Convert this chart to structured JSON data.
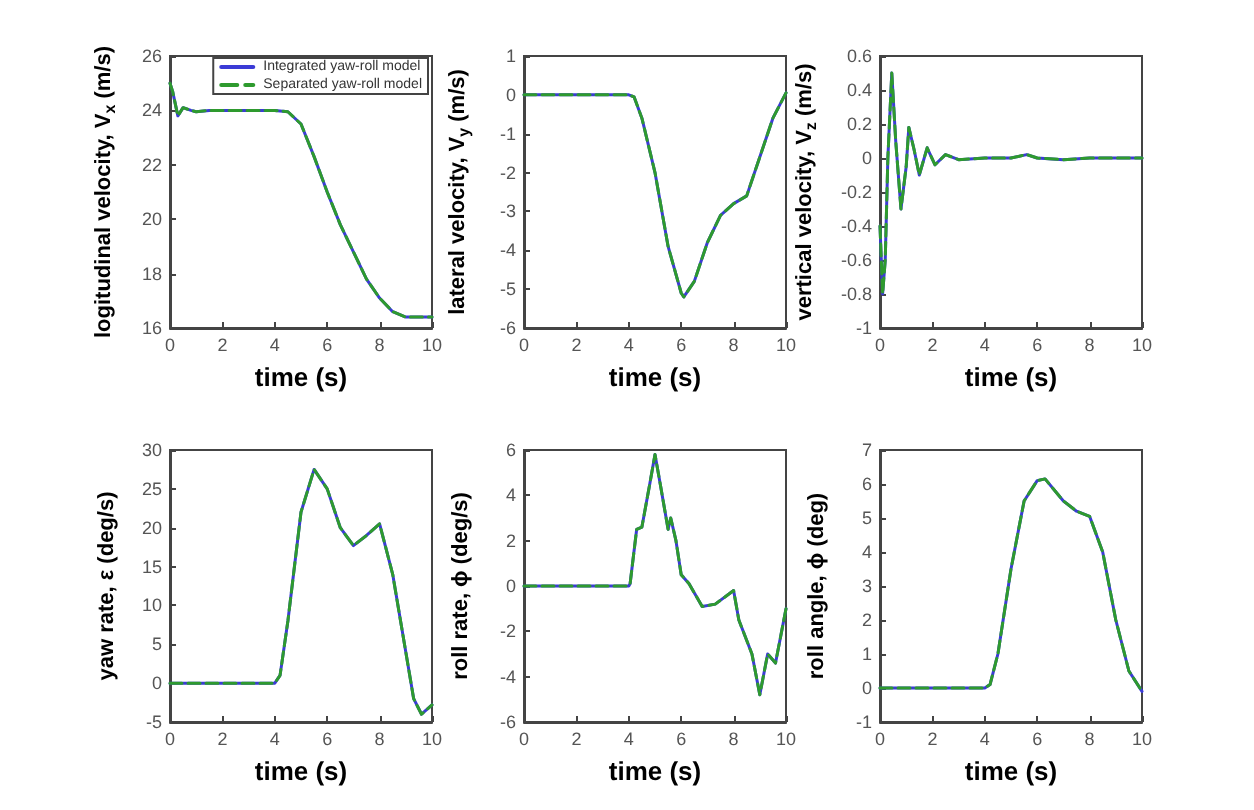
{
  "chart_data": [
    {
      "type": "line",
      "ylabel": "logitudinal velocity, V$_{x}$ (m/s)",
      "xlabel": "time (s)",
      "xlim": [
        0,
        10
      ],
      "xticks": [
        0,
        2,
        4,
        6,
        8,
        10
      ],
      "ylim": [
        16,
        26
      ],
      "yticks": [
        16,
        18,
        20,
        22,
        24,
        26
      ],
      "grid": false,
      "legend": "top right",
      "marker": "none",
      "series": [
        {
          "name": "Integrated yaw-roll model",
          "color": "#3b3bd6",
          "line_style": "solid",
          "x": [
            0,
            0.1,
            0.3,
            0.5,
            0.8,
            1,
            1.5,
            2,
            4,
            4.5,
            5,
            5.5,
            6,
            6.5,
            7,
            7.5,
            8,
            8.5,
            9,
            10
          ],
          "values": [
            25,
            24.7,
            23.8,
            24.1,
            24.0,
            23.95,
            24,
            24,
            24,
            23.95,
            23.5,
            22.3,
            21,
            19.8,
            18.8,
            17.8,
            17.1,
            16.6,
            16.4,
            16.4
          ]
        },
        {
          "name": "Separated yaw-roll model",
          "color": "#2e9a2e",
          "line_style": "dashed",
          "x": [
            0,
            0.1,
            0.3,
            0.5,
            0.8,
            1,
            1.5,
            2,
            4,
            4.5,
            5,
            5.5,
            6,
            6.5,
            7,
            7.5,
            8,
            8.5,
            9,
            10
          ],
          "values": [
            25,
            24.7,
            23.8,
            24.1,
            24.0,
            23.95,
            24,
            24,
            24,
            23.95,
            23.5,
            22.3,
            21,
            19.8,
            18.8,
            17.8,
            17.1,
            16.6,
            16.4,
            16.4
          ]
        }
      ]
    },
    {
      "type": "line",
      "ylabel": "lateral velocity, V$_{y}$ (m/s)",
      "xlabel": "time (s)",
      "xlim": [
        0,
        10
      ],
      "xticks": [
        0,
        2,
        4,
        6,
        8,
        10
      ],
      "ylim": [
        -6,
        1
      ],
      "yticks": [
        -6,
        -5,
        -4,
        -3,
        -2,
        -1,
        0,
        1
      ],
      "grid": false,
      "legend": false,
      "marker": "none",
      "series": [
        {
          "color": "#3b3bd6",
          "line_style": "solid",
          "x": [
            0,
            4,
            4.2,
            4.5,
            5,
            5.5,
            6,
            6.1,
            6.5,
            7,
            7.5,
            8,
            8.5,
            9,
            9.5,
            10
          ],
          "values": [
            0,
            0,
            -0.05,
            -0.6,
            -2,
            -3.9,
            -5.1,
            -5.2,
            -4.8,
            -3.8,
            -3.1,
            -2.8,
            -2.6,
            -1.6,
            -0.6,
            0.05
          ]
        },
        {
          "color": "#2e9a2e",
          "line_style": "dashed",
          "x": [
            0,
            4,
            4.2,
            4.5,
            5,
            5.5,
            6,
            6.1,
            6.5,
            7,
            7.5,
            8,
            8.5,
            9,
            9.5,
            10
          ],
          "values": [
            0,
            0,
            -0.05,
            -0.6,
            -2,
            -3.9,
            -5.1,
            -5.2,
            -4.8,
            -3.8,
            -3.1,
            -2.8,
            -2.6,
            -1.6,
            -0.6,
            0.05
          ]
        }
      ]
    },
    {
      "type": "line",
      "ylabel": "vertical velocity, V$_{z}$ (m/s)",
      "xlabel": "time (s)",
      "xlim": [
        0,
        10
      ],
      "xticks": [
        0,
        2,
        4,
        6,
        8,
        10
      ],
      "ylim": [
        -1,
        0.6
      ],
      "yticks": [
        -1,
        -0.8,
        -0.6,
        -0.4,
        -0.2,
        0,
        0.2,
        0.4,
        0.6
      ],
      "grid": false,
      "legend": false,
      "marker": "none",
      "series": [
        {
          "color": "#3b3bd6",
          "line_style": "solid",
          "x": [
            0,
            0.1,
            0.2,
            0.3,
            0.45,
            0.6,
            0.8,
            1,
            1.1,
            1.3,
            1.5,
            1.8,
            2.1,
            2.5,
            3,
            4,
            5,
            5.6,
            6,
            7,
            8,
            10
          ],
          "values": [
            -0.4,
            -0.8,
            -0.6,
            0,
            0.5,
            0.1,
            -0.3,
            -0.05,
            0.18,
            0.05,
            -0.1,
            0.06,
            -0.04,
            0.02,
            -0.01,
            0,
            0,
            0.02,
            0,
            -0.01,
            0,
            0
          ]
        },
        {
          "color": "#2e9a2e",
          "line_style": "dashed",
          "x": [
            0,
            0.1,
            0.2,
            0.3,
            0.45,
            0.6,
            0.8,
            1,
            1.1,
            1.3,
            1.5,
            1.8,
            2.1,
            2.5,
            3,
            4,
            5,
            5.6,
            6,
            7,
            8,
            10
          ],
          "values": [
            -0.4,
            -0.8,
            -0.6,
            0,
            0.5,
            0.1,
            -0.3,
            -0.05,
            0.18,
            0.05,
            -0.1,
            0.06,
            -0.04,
            0.02,
            -0.01,
            0,
            0,
            0.02,
            0,
            -0.01,
            0,
            0
          ]
        }
      ]
    },
    {
      "type": "line",
      "ylabel": "yaw rate, ε (deg/s)",
      "xlabel": "time (s)",
      "xlim": [
        0,
        10
      ],
      "xticks": [
        0,
        2,
        4,
        6,
        8,
        10
      ],
      "ylim": [
        -5,
        30
      ],
      "yticks": [
        -5,
        0,
        5,
        10,
        15,
        20,
        25,
        30
      ],
      "grid": false,
      "legend": false,
      "marker": "none",
      "series": [
        {
          "color": "#3b3bd6",
          "line_style": "solid",
          "x": [
            0,
            4,
            4.2,
            4.5,
            5,
            5.5,
            6,
            6.5,
            7,
            7.5,
            8,
            8.5,
            9,
            9.3,
            9.6,
            10
          ],
          "values": [
            0,
            0,
            1,
            8,
            22,
            27.5,
            25,
            20,
            17.7,
            19,
            20.5,
            14,
            4,
            -2,
            -4,
            -2.8
          ]
        },
        {
          "color": "#2e9a2e",
          "line_style": "dashed",
          "x": [
            0,
            4,
            4.2,
            4.5,
            5,
            5.5,
            6,
            6.5,
            7,
            7.5,
            8,
            8.5,
            9,
            9.3,
            9.6,
            10
          ],
          "values": [
            0,
            0,
            1,
            8,
            22,
            27.5,
            25,
            20,
            17.7,
            19,
            20.5,
            14,
            4,
            -2,
            -4,
            -2.8
          ]
        }
      ]
    },
    {
      "type": "line",
      "ylabel": "roll rate, ϕ (deg/s)",
      "xlabel": "time (s)",
      "xlim": [
        0,
        10
      ],
      "xticks": [
        0,
        2,
        4,
        6,
        8,
        10
      ],
      "ylim": [
        -6,
        6
      ],
      "yticks": [
        -6,
        -4,
        -2,
        0,
        2,
        4,
        6
      ],
      "grid": false,
      "legend": false,
      "marker": "none",
      "series": [
        {
          "color": "#3b3bd6",
          "line_style": "solid",
          "x": [
            0,
            4,
            4.05,
            4.3,
            4.5,
            4.8,
            5,
            5.2,
            5.5,
            5.6,
            5.8,
            6,
            6.3,
            6.8,
            7.3,
            8,
            8.2,
            8.7,
            9,
            9.3,
            9.6,
            10
          ],
          "values": [
            0,
            0,
            0.1,
            2.5,
            2.6,
            4.5,
            5.8,
            4.5,
            2.5,
            3,
            2,
            0.5,
            0.1,
            -0.9,
            -0.8,
            -0.2,
            -1.5,
            -3,
            -4.8,
            -3,
            -3.4,
            -1
          ]
        },
        {
          "color": "#2e9a2e",
          "line_style": "dashed",
          "x": [
            0,
            4,
            4.05,
            4.3,
            4.5,
            4.8,
            5,
            5.2,
            5.5,
            5.6,
            5.8,
            6,
            6.3,
            6.8,
            7.3,
            8,
            8.2,
            8.7,
            9,
            9.3,
            9.6,
            10
          ],
          "values": [
            0,
            0,
            0.1,
            2.5,
            2.6,
            4.5,
            5.8,
            4.5,
            2.5,
            3,
            2,
            0.5,
            0.1,
            -0.9,
            -0.8,
            -0.2,
            -1.5,
            -3,
            -4.8,
            -3,
            -3.4,
            -1
          ]
        }
      ]
    },
    {
      "type": "line",
      "ylabel": "roll angle, ϕ (deg)",
      "xlabel": "time (s)",
      "xlim": [
        0,
        10
      ],
      "xticks": [
        0,
        2,
        4,
        6,
        8,
        10
      ],
      "ylim": [
        -1,
        7
      ],
      "yticks": [
        -1,
        0,
        1,
        2,
        3,
        4,
        5,
        6,
        7
      ],
      "grid": false,
      "legend": false,
      "marker": "none",
      "series": [
        {
          "color": "#3b3bd6",
          "line_style": "solid",
          "x": [
            0,
            4,
            4.2,
            4.5,
            5,
            5.5,
            6,
            6.3,
            7,
            7.5,
            8,
            8.5,
            9,
            9.5,
            10
          ],
          "values": [
            0,
            0,
            0.1,
            1,
            3.5,
            5.5,
            6.1,
            6.15,
            5.5,
            5.2,
            5.05,
            4,
            2,
            0.5,
            -0.1
          ]
        },
        {
          "color": "#2e9a2e",
          "line_style": "dashed",
          "x": [
            0,
            4,
            4.2,
            4.5,
            5,
            5.5,
            6,
            6.3,
            7,
            7.5,
            8,
            8.5,
            9,
            9.5,
            10
          ],
          "values": [
            0,
            0,
            0.1,
            1,
            3.5,
            5.5,
            6.1,
            6.15,
            5.5,
            5.2,
            5.05,
            4,
            2,
            0.5,
            -0.1
          ]
        }
      ]
    }
  ]
}
